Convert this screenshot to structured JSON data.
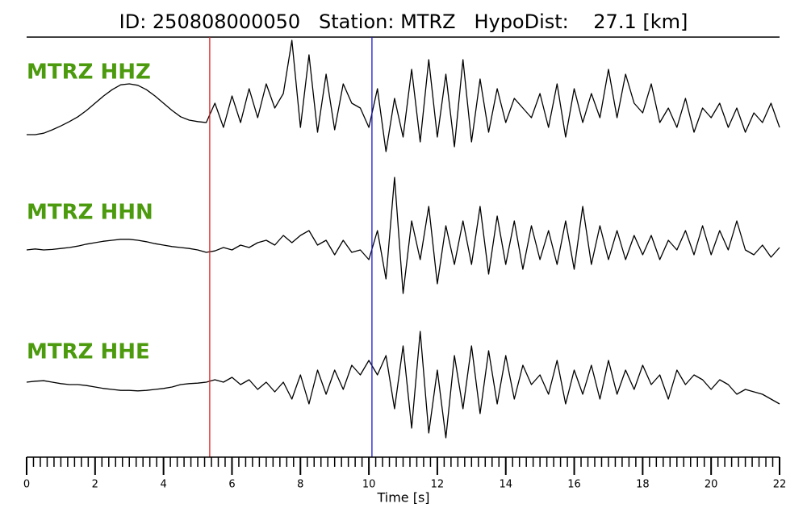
{
  "chart_data": {
    "type": "seismogram",
    "title": "ID: 250808000050   Station: MTRZ   HypoDist:    27.1 [km]",
    "xlabel": "Time [s]",
    "xlim": [
      0,
      22
    ],
    "xticks": [
      0,
      2,
      4,
      6,
      8,
      10,
      12,
      14,
      16,
      18,
      20,
      22
    ],
    "xminorticks": [
      0.2,
      0.4,
      0.6,
      0.8,
      1,
      1.2,
      1.4,
      1.6,
      1.8,
      2.2,
      2.4,
      2.6,
      2.8,
      3,
      3.2,
      3.4,
      3.6,
      3.8,
      4.2,
      4.4,
      4.6,
      4.8,
      5,
      5.2,
      5.4,
      5.6,
      5.8,
      6.2,
      6.4,
      6.6,
      6.8,
      7,
      7.2,
      7.4,
      7.6,
      7.8,
      8.2,
      8.4,
      8.6,
      8.8,
      9,
      9.2,
      9.4,
      9.6,
      9.8,
      10.2,
      10.4,
      10.6,
      10.8,
      11,
      11.2,
      11.4,
      11.6,
      11.8,
      12.2,
      12.4,
      12.6,
      12.8,
      13,
      13.2,
      13.4,
      13.6,
      13.8,
      14.2,
      14.4,
      14.6,
      14.8,
      15,
      15.2,
      15.4,
      15.6,
      15.8,
      16.2,
      16.4,
      16.6,
      16.8,
      17,
      17.2,
      17.4,
      17.6,
      17.8,
      18.2,
      18.4,
      18.6,
      18.8,
      19,
      19.2,
      19.4,
      19.6,
      19.8,
      20.2,
      20.4,
      20.6,
      20.8,
      21,
      21.2,
      21.4,
      21.6,
      21.8
    ],
    "picks": [
      {
        "x": 5.35,
        "color": "#e02020"
      },
      {
        "x": 10.09,
        "color": "#1a1ad0"
      }
    ],
    "ylim": [
      -2,
      2
    ],
    "line_color": "#000000",
    "x": [
      0,
      0.25,
      0.5,
      0.75,
      1,
      1.25,
      1.5,
      1.75,
      2,
      2.25,
      2.5,
      2.75,
      3,
      3.25,
      3.5,
      3.75,
      4,
      4.25,
      4.5,
      4.75,
      5,
      5.25,
      5.5,
      5.75,
      6,
      6.25,
      6.5,
      6.75,
      7,
      7.25,
      7.5,
      7.75,
      8,
      8.25,
      8.5,
      8.75,
      9,
      9.25,
      9.5,
      9.75,
      10,
      10.25,
      10.5,
      10.75,
      11,
      11.25,
      11.5,
      11.75,
      12,
      12.25,
      12.5,
      12.75,
      13,
      13.25,
      13.5,
      13.75,
      14,
      14.25,
      14.5,
      14.75,
      15,
      15.25,
      15.5,
      15.75,
      16,
      16.25,
      16.5,
      16.75,
      17,
      17.25,
      17.5,
      17.75,
      18,
      18.25,
      18.5,
      18.75,
      19,
      19.25,
      19.5,
      19.75,
      20,
      20.25,
      20.5,
      20.75,
      21,
      21.25,
      21.5,
      21.75,
      22
    ],
    "series": [
      {
        "name": "MTRZ HHZ",
        "values": [
          -0.45,
          -0.45,
          -0.42,
          -0.35,
          -0.27,
          -0.18,
          -0.08,
          0.05,
          0.2,
          0.35,
          0.48,
          0.58,
          0.6,
          0.57,
          0.48,
          0.35,
          0.2,
          0.05,
          -0.08,
          -0.15,
          -0.18,
          -0.2,
          0.2,
          -0.3,
          0.35,
          -0.2,
          0.5,
          -0.1,
          0.6,
          0.1,
          0.4,
          1.5,
          -0.3,
          1.2,
          -0.4,
          0.8,
          -0.35,
          0.6,
          0.2,
          0.1,
          -0.3,
          0.5,
          -0.8,
          0.3,
          -0.5,
          0.9,
          -0.6,
          1.1,
          -0.5,
          0.8,
          -0.7,
          1.1,
          -0.6,
          0.7,
          -0.4,
          0.5,
          -0.2,
          0.3,
          0.1,
          -0.1,
          0.4,
          -0.3,
          0.6,
          -0.5,
          0.5,
          -0.2,
          0.4,
          -0.1,
          0.9,
          -0.1,
          0.8,
          0.2,
          0,
          0.6,
          -0.2,
          0.1,
          -0.3,
          0.3,
          -0.4,
          0.1,
          -0.1,
          0.2,
          -0.3,
          0.1,
          -0.4,
          0,
          -0.2,
          0.2,
          -0.3
        ]
      },
      {
        "name": "MTRZ HHN",
        "values": [
          0,
          0.02,
          0,
          0.01,
          0.03,
          0.05,
          0.08,
          0.12,
          0.15,
          0.18,
          0.2,
          0.22,
          0.22,
          0.2,
          0.17,
          0.13,
          0.1,
          0.07,
          0.05,
          0.03,
          0,
          -0.05,
          -0.02,
          0.05,
          0,
          0.1,
          0.05,
          0.15,
          0.2,
          0.1,
          0.3,
          0.15,
          0.3,
          0.4,
          0.1,
          0.2,
          -0.1,
          0.2,
          -0.05,
          0,
          -0.2,
          0.4,
          -0.6,
          1.5,
          -0.9,
          0.6,
          -0.2,
          0.9,
          -0.7,
          0.5,
          -0.3,
          0.6,
          -0.3,
          0.9,
          -0.5,
          0.7,
          -0.3,
          0.6,
          -0.4,
          0.5,
          -0.2,
          0.4,
          -0.3,
          0.6,
          -0.4,
          0.9,
          -0.3,
          0.5,
          -0.2,
          0.4,
          -0.2,
          0.3,
          -0.1,
          0.3,
          -0.2,
          0.2,
          0,
          0.4,
          -0.1,
          0.5,
          -0.1,
          0.4,
          0,
          0.6,
          0,
          -0.1,
          0.1,
          -0.15,
          0.05
        ]
      },
      {
        "name": "MTRZ HHE",
        "values": [
          0.05,
          0.07,
          0.08,
          0.05,
          0.02,
          0,
          0,
          -0.02,
          -0.05,
          -0.08,
          -0.1,
          -0.12,
          -0.12,
          -0.13,
          -0.12,
          -0.1,
          -0.08,
          -0.05,
          0,
          0.02,
          0.03,
          0.05,
          0.1,
          0.05,
          0.15,
          0,
          0.1,
          -0.1,
          0.05,
          -0.15,
          0.05,
          -0.3,
          0.2,
          -0.4,
          0.3,
          -0.2,
          0.3,
          -0.1,
          0.4,
          0.2,
          0.5,
          0.2,
          0.6,
          -0.5,
          0.8,
          -0.9,
          1.1,
          -1,
          0.3,
          -1.1,
          0.6,
          -0.5,
          0.8,
          -0.6,
          0.7,
          -0.4,
          0.6,
          -0.3,
          0.4,
          0,
          0.2,
          -0.2,
          0.5,
          -0.4,
          0.3,
          -0.2,
          0.4,
          -0.3,
          0.5,
          -0.2,
          0.3,
          -0.1,
          0.4,
          0,
          0.2,
          -0.3,
          0.3,
          0,
          0.2,
          0.1,
          -0.1,
          0.1,
          0,
          -0.2,
          -0.1,
          -0.15,
          -0.2,
          -0.3,
          -0.4
        ]
      }
    ]
  }
}
